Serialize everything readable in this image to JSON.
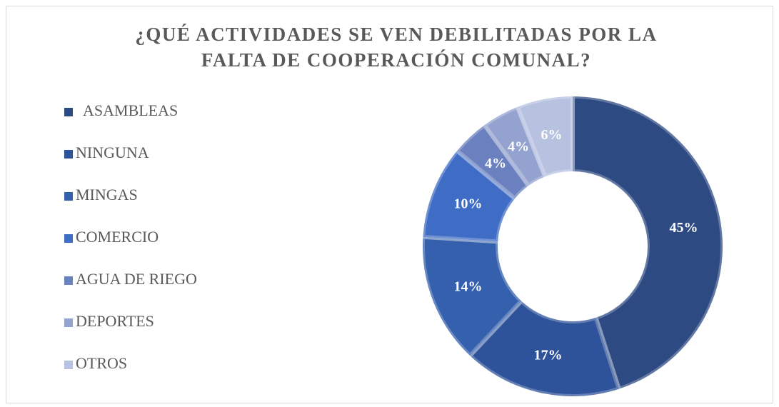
{
  "chart_data": {
    "type": "donut",
    "title": "¿QUÉ ACTIVIDADES SE VEN DEBILITADAS POR LA FALTA DE COOPERACIÓN COMUNAL?",
    "categories": [
      "ASAMBLEAS",
      "NINGUNA",
      "MINGAS",
      "COMERCIO",
      "AGUA DE RIEGO",
      "DEPORTES",
      "OTROS"
    ],
    "values": [
      45,
      17,
      14,
      10,
      4,
      4,
      6
    ],
    "value_labels": [
      "45%",
      "17%",
      "14%",
      "10%",
      "4%",
      "4%",
      "6%"
    ],
    "colors": [
      "#2e4a83",
      "#2f539a",
      "#3560ad",
      "#3f6cc4",
      "#6b80be",
      "#93a2cf",
      "#b7c2e0"
    ],
    "legend": "left"
  }
}
